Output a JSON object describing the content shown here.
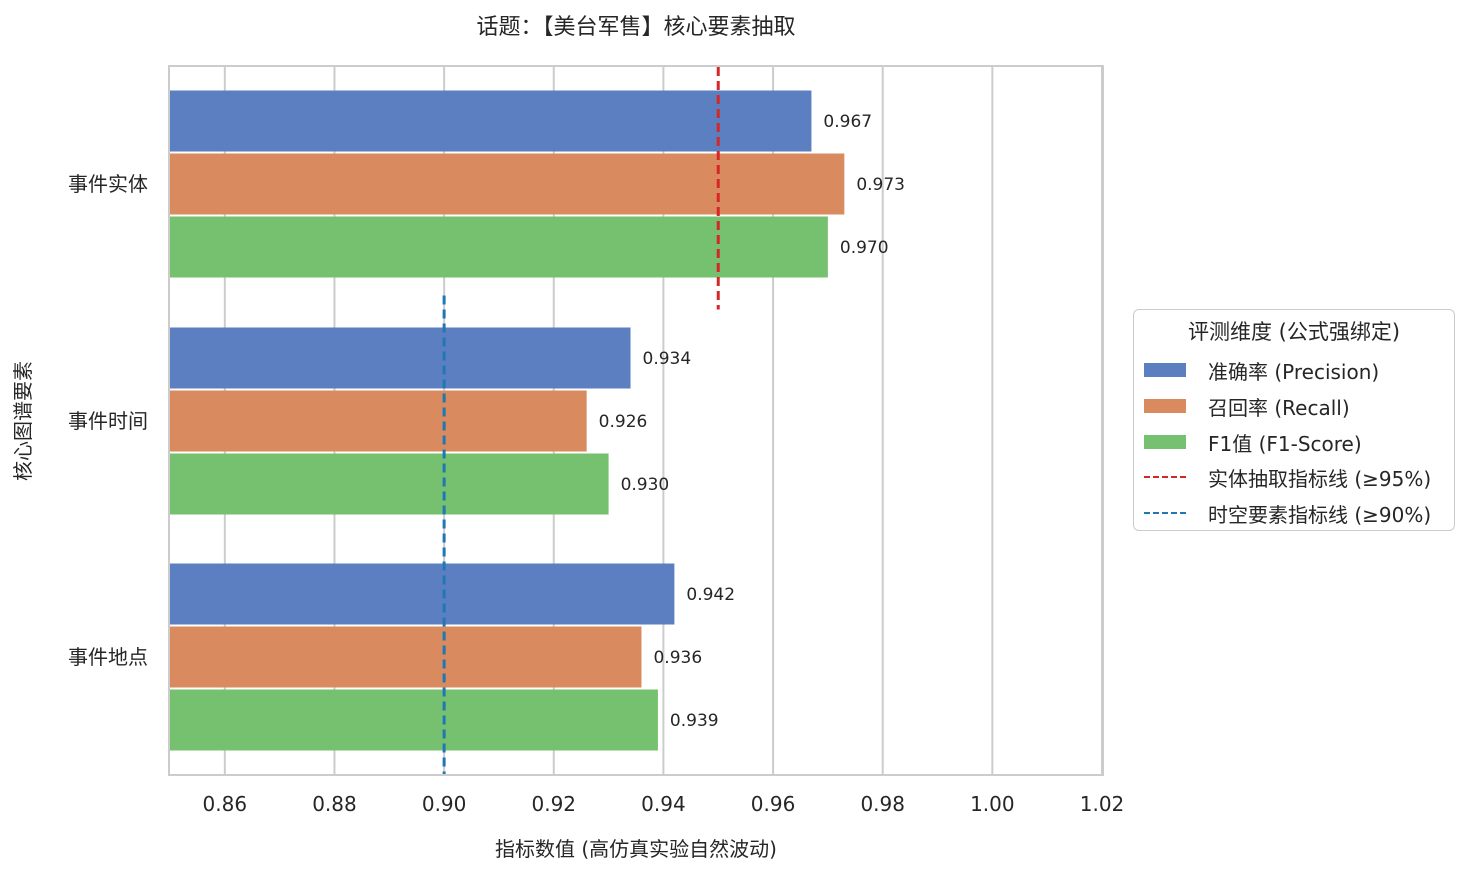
{
  "chart_data": {
    "type": "bar",
    "orientation": "horizontal",
    "title": "话题：【美台军售】核心要素抽取",
    "xlabel": "指标数值 (高仿真实验自然波动)",
    "ylabel": "核心图谱要素",
    "xlim": [
      0.85,
      1.02
    ],
    "xticks": [
      "0.86",
      "0.88",
      "0.90",
      "0.92",
      "0.94",
      "0.96",
      "0.98",
      "1.00",
      "1.02"
    ],
    "grid": "x",
    "categories": [
      "事件实体",
      "事件时间",
      "事件地点"
    ],
    "series": [
      {
        "name": "准确率 (Precision)",
        "color": "#5b7fc1",
        "values": [
          0.967,
          0.934,
          0.942
        ],
        "labels": [
          "0.967",
          "0.934",
          "0.942"
        ]
      },
      {
        "name": "召回率 (Recall)",
        "color": "#d98b5f",
        "values": [
          0.973,
          0.926,
          0.936
        ],
        "labels": [
          "0.973",
          "0.926",
          "0.936"
        ]
      },
      {
        "name": "F1值 (F1-Score)",
        "color": "#75c16f",
        "values": [
          0.97,
          0.93,
          0.939
        ],
        "labels": [
          "0.970",
          "0.930",
          "0.939"
        ]
      }
    ],
    "reference_lines": [
      {
        "name": "实体抽取指标线 (≥95%)",
        "value": 0.95,
        "color": "#d62728",
        "category_span": [
          0
        ]
      },
      {
        "name": "时空要素指标线 (≥90%)",
        "value": 0.9,
        "color": "#1f77b4",
        "category_span": [
          1,
          2
        ]
      }
    ],
    "legend": {
      "title": "评测维度 (公式强绑定)",
      "placement": "outside-right"
    }
  }
}
